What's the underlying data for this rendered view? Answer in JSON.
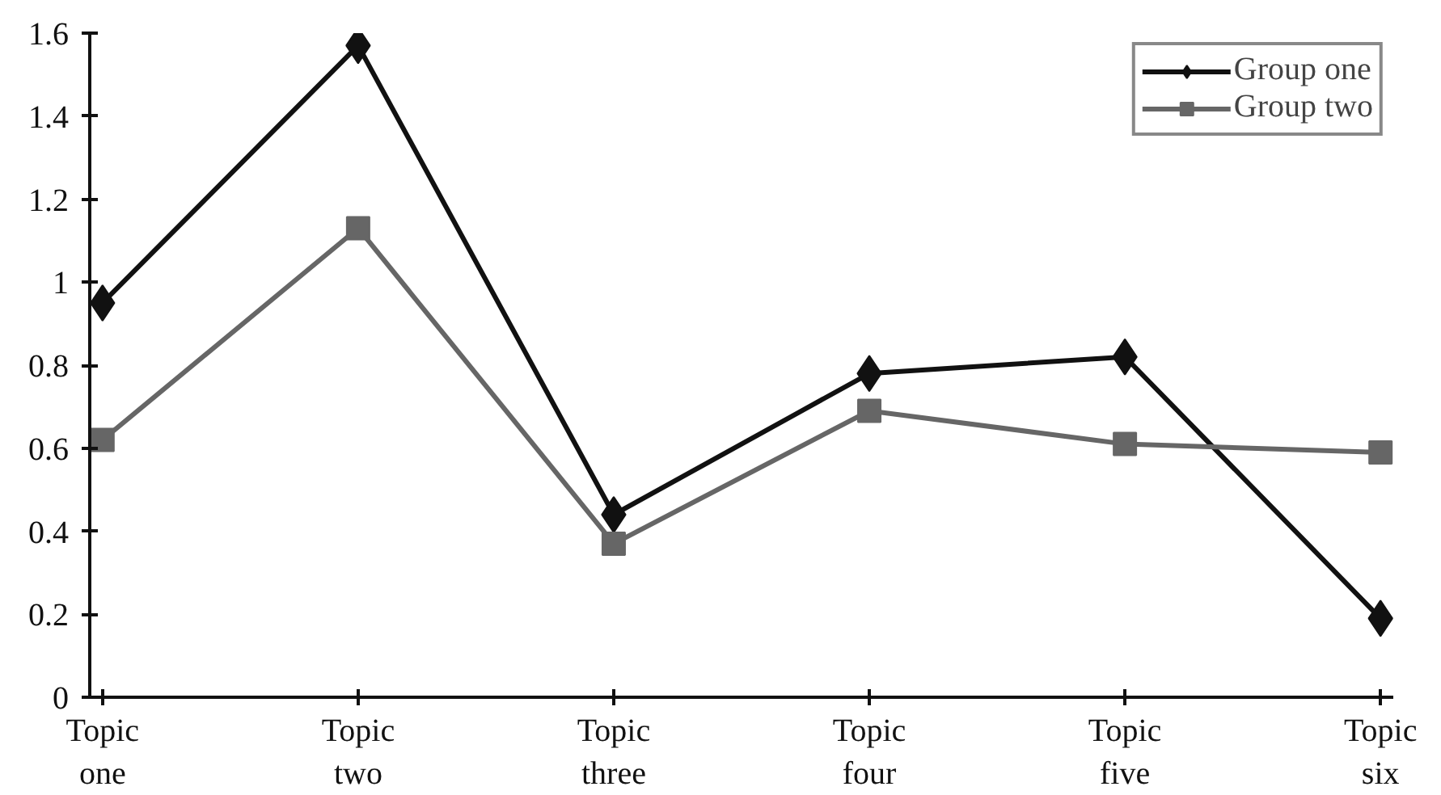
{
  "chart_data": {
    "type": "line",
    "categories": [
      "Topic\none",
      "Topic\ntwo",
      "Topic\nthree",
      "Topic\nfour",
      "Topic\nfive",
      "Topic\nsix"
    ],
    "series": [
      {
        "name": "Group one",
        "color": "#111111",
        "marker": "diamond",
        "values": [
          0.95,
          1.57,
          0.44,
          0.78,
          0.82,
          0.19
        ]
      },
      {
        "name": "Group two",
        "color": "#666666",
        "marker": "square",
        "values": [
          0.62,
          1.13,
          0.37,
          0.69,
          0.61,
          0.59
        ]
      }
    ],
    "ylim": [
      0,
      1.6
    ],
    "yticks": [
      0,
      0.2,
      0.4,
      0.6,
      0.8,
      1,
      1.2,
      1.4,
      1.6
    ],
    "grid": false,
    "legend": "top right"
  }
}
